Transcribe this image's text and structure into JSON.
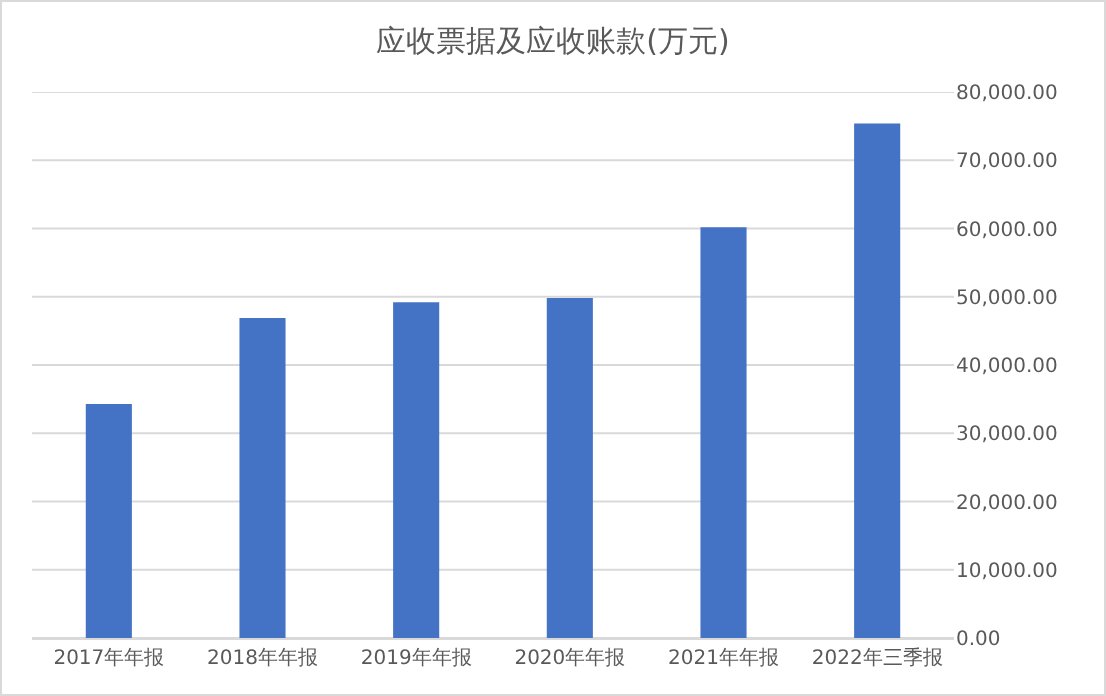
{
  "chart_data": {
    "type": "bar",
    "title": "应收票据及应收账款(万元)",
    "categories": [
      "2017年年报",
      "2018年年报",
      "2019年年报",
      "2020年年报",
      "2021年年报",
      "2022年三季报"
    ],
    "values": [
      34300,
      46900,
      49200,
      49800,
      60200,
      75400
    ],
    "color": "#4472c4",
    "ylim": [
      0,
      80000
    ],
    "yticks": [
      {
        "value": 0,
        "label": "0.00"
      },
      {
        "value": 10000,
        "label": "10,000.00"
      },
      {
        "value": 20000,
        "label": "20,000.00"
      },
      {
        "value": 30000,
        "label": "30,000.00"
      },
      {
        "value": 40000,
        "label": "40,000.00"
      },
      {
        "value": 50000,
        "label": "50,000.00"
      },
      {
        "value": 60000,
        "label": "60,000.00"
      },
      {
        "value": 70000,
        "label": "70,000.00"
      },
      {
        "value": 80000,
        "label": "80,000.00"
      }
    ],
    "grid": "y"
  }
}
